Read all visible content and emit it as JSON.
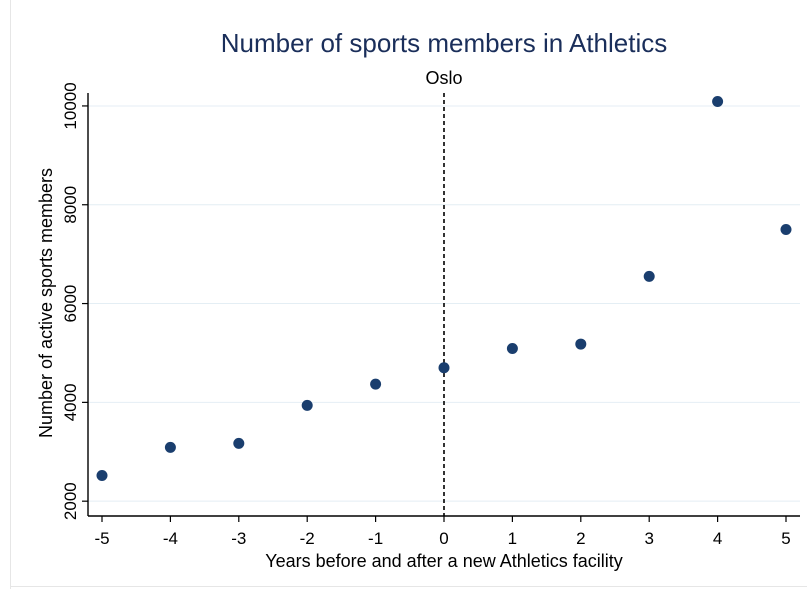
{
  "chart_data": {
    "type": "scatter",
    "title": "Number of sports members in Athletics",
    "subtitle": "Oslo",
    "xlabel": "Years before and after a new Athletics facility",
    "ylabel": "Number of active sports members",
    "x": [
      -5,
      -4,
      -3,
      -2,
      -1,
      0,
      1,
      2,
      3,
      4,
      5
    ],
    "y": [
      2520,
      3090,
      3170,
      3940,
      4370,
      4700,
      5090,
      5180,
      6550,
      10090,
      7500
    ],
    "xticks": [
      -5,
      -4,
      -3,
      -2,
      -1,
      0,
      1,
      2,
      3,
      4,
      5
    ],
    "yticks": [
      2000,
      4000,
      6000,
      8000,
      10000
    ],
    "xlim": [
      -5,
      5
    ],
    "ylim": [
      1700,
      10100
    ],
    "reference_line_x": 0,
    "reference_line_style": "dashed",
    "grid": "horizontal",
    "colors": {
      "title": "#1a2e5a",
      "marker": "#1a3e6e",
      "grid": "#e4eef4",
      "axis": "#000000"
    }
  }
}
